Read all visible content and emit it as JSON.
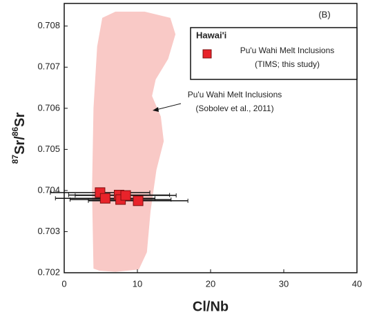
{
  "chart_data": {
    "type": "scatter",
    "panel_label": "(B)",
    "xlabel": "Cl/Nb",
    "ylabel": [
      "87",
      "Sr/",
      "86",
      "Sr"
    ],
    "xlim": [
      0,
      40
    ],
    "xticks": [
      0,
      10,
      20,
      30,
      40
    ],
    "ylim": [
      0.702,
      0.70855
    ],
    "yticks": [
      0.702,
      0.703,
      0.704,
      0.705,
      0.706,
      0.707,
      0.708
    ],
    "legend": {
      "title": "Hawai'i",
      "position": "upper right"
    },
    "series": [
      {
        "name": [
          "Pu'u Wahi Melt Inclusions",
          "(TIMS; this study)"
        ],
        "color": "#e8232a",
        "x": [
          4.9,
          5.6,
          7.5,
          7.7,
          8.4,
          10.1
        ],
        "values": [
          0.70395,
          0.70381,
          0.70389,
          0.70378,
          0.70388,
          0.70375
        ],
        "xerr": [
          6.8,
          6.8,
          6.9,
          6.9,
          6.9,
          6.8
        ]
      }
    ],
    "region": {
      "color": "#f9c9c6",
      "x": [
        4.0,
        3.8,
        4.0,
        4.5,
        5.2,
        7,
        11,
        14.5,
        15.2,
        14.2,
        12.5,
        12.0,
        13.2,
        13.6,
        12.6,
        11.8,
        11.3,
        10.2,
        7,
        4.8
      ],
      "y": [
        0.7021,
        0.704,
        0.706,
        0.7075,
        0.7082,
        0.70835,
        0.70835,
        0.7082,
        0.7078,
        0.7072,
        0.7067,
        0.7063,
        0.7058,
        0.7052,
        0.7045,
        0.7035,
        0.7025,
        0.70208,
        0.70202,
        0.70205
      ]
    },
    "annotations": [
      {
        "lines": [
          "Pu'u Wahi Melt Inclusions",
          "(Sobolev et al., 2011)"
        ]
      }
    ]
  }
}
